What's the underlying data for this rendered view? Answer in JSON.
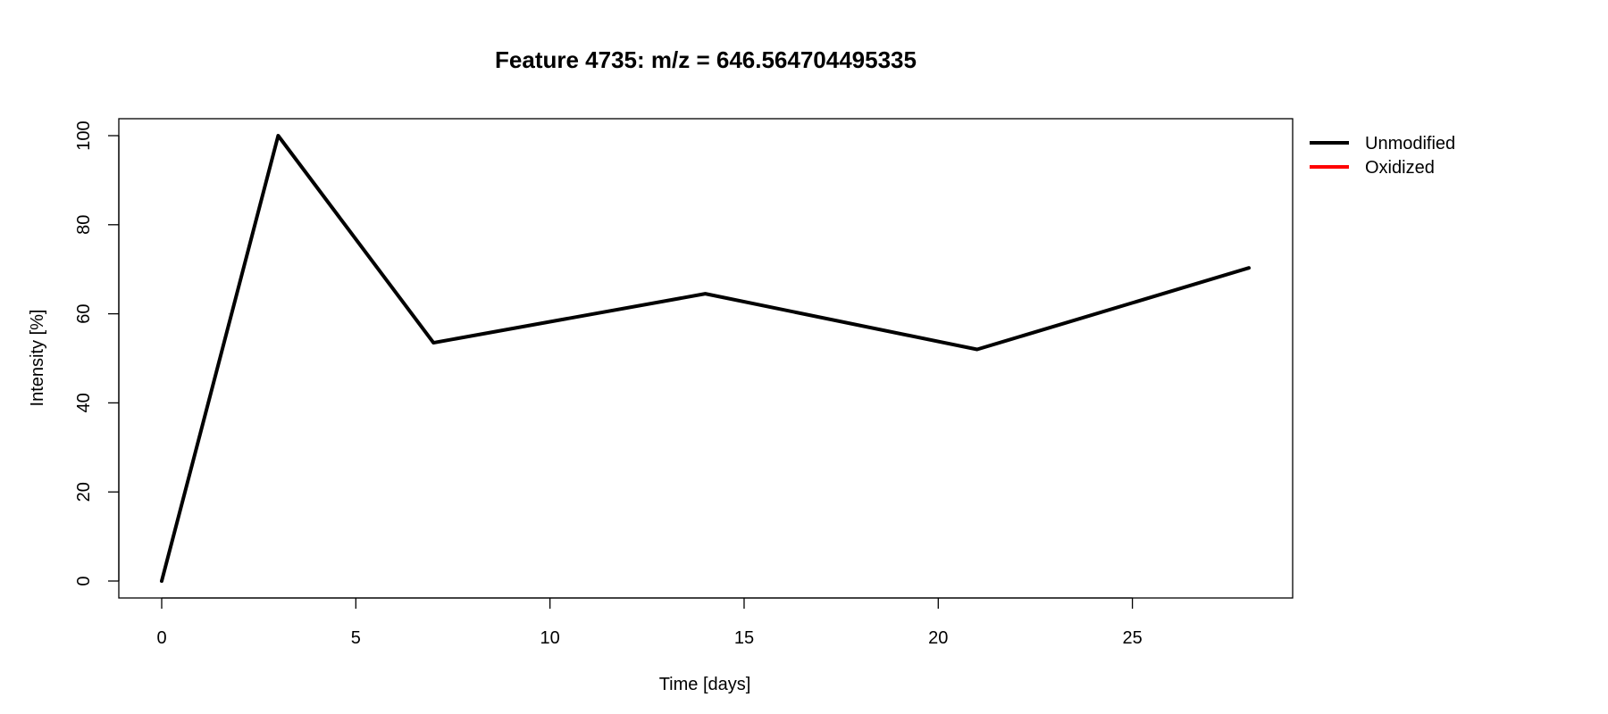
{
  "chart_data": {
    "type": "line",
    "title": "Feature 4735: m/z = 646.564704495335",
    "xlabel": "Time [days]",
    "ylabel": "Intensity [%]",
    "xlim": [
      0,
      28
    ],
    "ylim": [
      0,
      100
    ],
    "x_ticks": [
      "0",
      "5",
      "10",
      "15",
      "20",
      "25"
    ],
    "y_ticks": [
      "0",
      "20",
      "40",
      "60",
      "80",
      "100"
    ],
    "grid": false,
    "legend_position": "outside-top-right",
    "series": [
      {
        "name": "Unmodified",
        "color": "#000000",
        "x": [
          0,
          3,
          7,
          14,
          21,
          28
        ],
        "y": [
          0,
          100,
          53.5,
          64.5,
          52,
          70.3
        ]
      },
      {
        "name": "Oxidized",
        "color": "#ff0000",
        "x": [],
        "y": []
      }
    ]
  }
}
